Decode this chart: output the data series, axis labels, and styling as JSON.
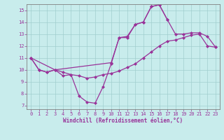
{
  "xlabel": "Windchill (Refroidissement éolien,°C)",
  "background_color": "#c8ecec",
  "grid_color": "#a0cece",
  "line_color": "#993399",
  "xlim": [
    -0.5,
    23.5
  ],
  "ylim": [
    6.7,
    15.5
  ],
  "yticks": [
    7,
    8,
    9,
    10,
    11,
    12,
    13,
    14,
    15
  ],
  "xticks": [
    0,
    1,
    2,
    3,
    4,
    5,
    6,
    7,
    8,
    9,
    10,
    11,
    12,
    13,
    14,
    15,
    16,
    17,
    18,
    19,
    20,
    21,
    22,
    23
  ],
  "curve1_x": [
    0,
    1,
    2,
    3,
    4,
    5,
    6,
    7,
    8,
    9,
    10,
    11,
    12,
    13,
    14,
    15,
    16,
    17
  ],
  "curve1_y": [
    11.0,
    10.0,
    9.8,
    10.0,
    9.5,
    9.6,
    7.8,
    7.3,
    7.2,
    8.6,
    10.5,
    12.7,
    12.7,
    13.8,
    14.0,
    15.3,
    15.45,
    14.2
  ],
  "curve2_x": [
    0,
    1,
    2,
    3,
    4,
    5,
    6,
    7,
    8,
    9,
    10,
    11,
    12,
    13,
    14,
    15,
    16,
    17,
    18,
    19,
    20,
    21,
    22,
    23
  ],
  "curve2_y": [
    11.0,
    10.0,
    9.8,
    10.0,
    9.8,
    9.6,
    9.5,
    9.3,
    9.4,
    9.6,
    9.7,
    9.9,
    10.2,
    10.5,
    11.0,
    11.5,
    12.0,
    12.4,
    12.5,
    12.7,
    12.9,
    13.0,
    12.0,
    11.9
  ],
  "curve3_x": [
    0,
    3,
    10,
    11,
    12,
    13,
    14,
    15,
    16,
    17,
    18,
    19,
    20,
    21,
    22,
    23
  ],
  "curve3_y": [
    11.0,
    10.0,
    10.6,
    12.7,
    12.8,
    13.8,
    14.0,
    15.3,
    15.45,
    14.2,
    13.0,
    13.0,
    13.1,
    13.1,
    12.8,
    11.9
  ]
}
